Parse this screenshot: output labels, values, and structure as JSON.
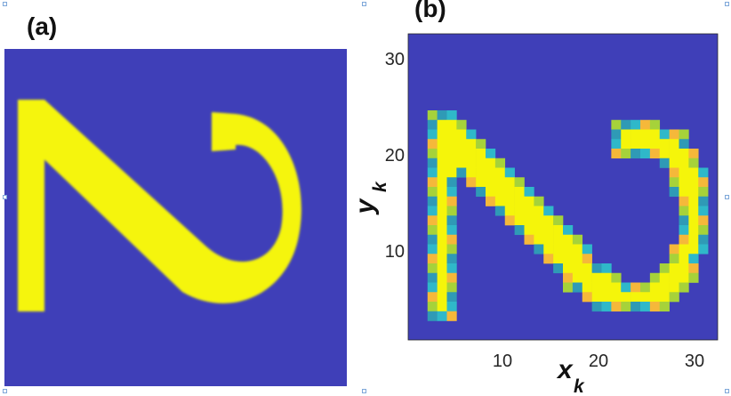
{
  "panels": {
    "a_label": "(a)",
    "b_label": "(b)"
  },
  "colors": {
    "background": "#3f3fb8",
    "shape": "#f5f50a",
    "edge_cyan": "#2fb8c9",
    "edge_teal": "#2f9ab6",
    "edge_green": "#a6d23a",
    "edge_orange": "#f5b83a"
  },
  "chart_data": [
    {
      "type": "heatmap",
      "panel": "(a)",
      "description_values": "high-resolution intensity image",
      "axes_visible": false
    },
    {
      "type": "heatmap",
      "panel": "(b)",
      "xlabel": "x",
      "xlabel_sub": "k",
      "ylabel": "y",
      "ylabel_sub": "k",
      "xlim": [
        1,
        32
      ],
      "ylim": [
        1,
        32
      ],
      "x_ticks": [
        10,
        20,
        30
      ],
      "y_ticks": [
        10,
        20,
        30
      ],
      "grid": false
    }
  ]
}
